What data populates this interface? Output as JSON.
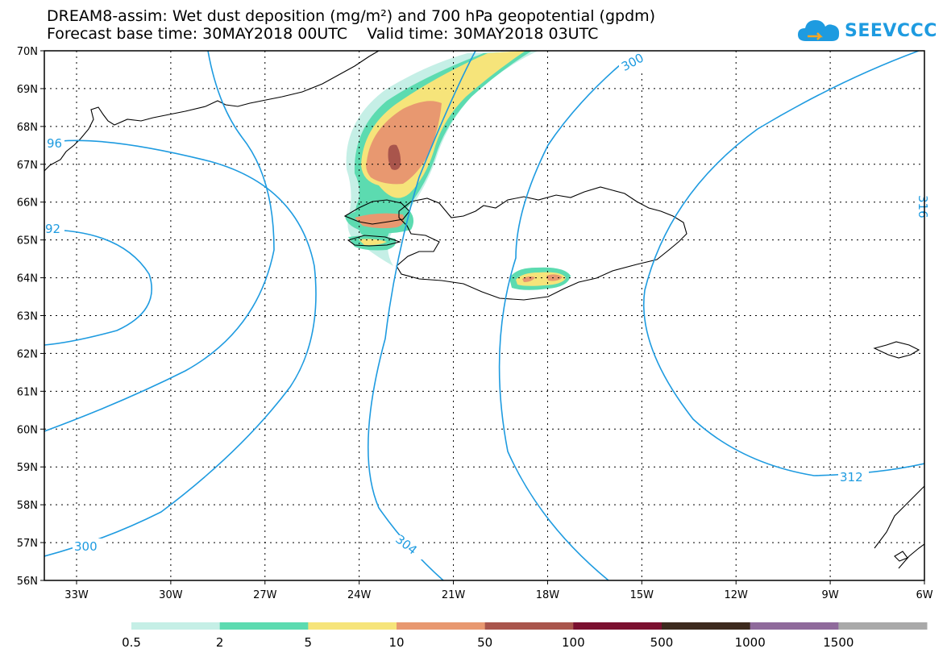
{
  "header": {
    "title_line1": "DREAM8-assim: Wet dust deposition (mg/m²) and 700 hPa geopotential (gpdm)",
    "title_line2": "Forecast base time: 30MAY2018 00UTC    Valid time: 30MAY2018 03UTC"
  },
  "logo": {
    "text": "SEEVCCC",
    "icon": "cloud-icon"
  },
  "map": {
    "region": "Iceland and surrounding North Atlantic",
    "lat_labels": [
      "70N",
      "69N",
      "68N",
      "67N",
      "66N",
      "65N",
      "64N",
      "63N",
      "62N",
      "61N",
      "60N",
      "59N",
      "58N",
      "57N",
      "56N"
    ],
    "lon_labels": [
      "33W",
      "30W",
      "27W",
      "24W",
      "21W",
      "18W",
      "15W",
      "12W",
      "9W",
      "6W"
    ],
    "contour_color": "#1e9be0",
    "contour_labels": [
      "96",
      "92",
      "300",
      "304",
      "300",
      "312",
      "316"
    ]
  },
  "legend": {
    "colors": [
      "#c5efe6",
      "#5cdbb0",
      "#f6e47a",
      "#e89870",
      "#a9554c",
      "#7b1030",
      "#3d2a1e",
      "#8f6a9b",
      "#a9a9a9"
    ],
    "labels": [
      "0.5",
      "2",
      "5",
      "10",
      "50",
      "100",
      "500",
      "1000",
      "1500"
    ]
  }
}
